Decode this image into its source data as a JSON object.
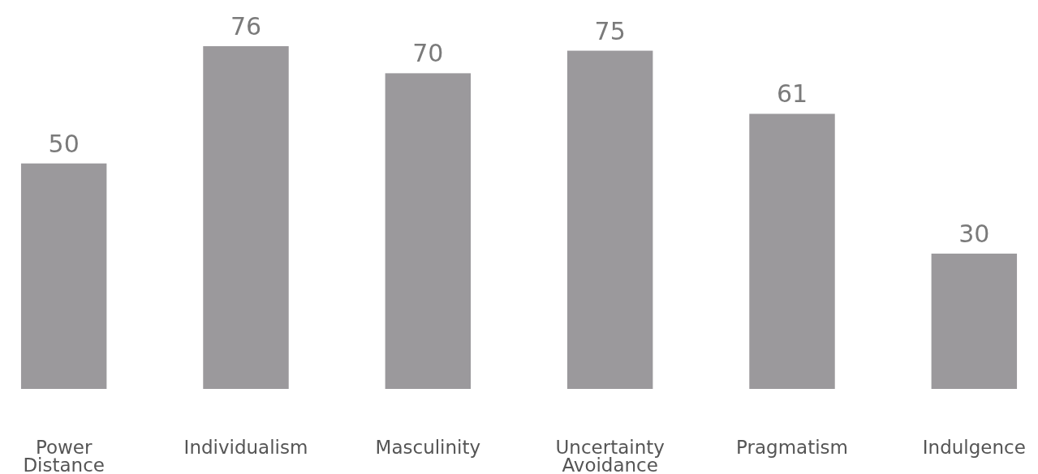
{
  "chart_data": {
    "type": "bar",
    "categories": [
      "Power Distance",
      "Individualism",
      "Masculinity",
      "Uncertainty Avoidance",
      "Pragmatism",
      "Indulgence"
    ],
    "values": [
      50,
      76,
      70,
      75,
      61,
      30
    ],
    "color": "#9b999c",
    "data_labels": true
  }
}
